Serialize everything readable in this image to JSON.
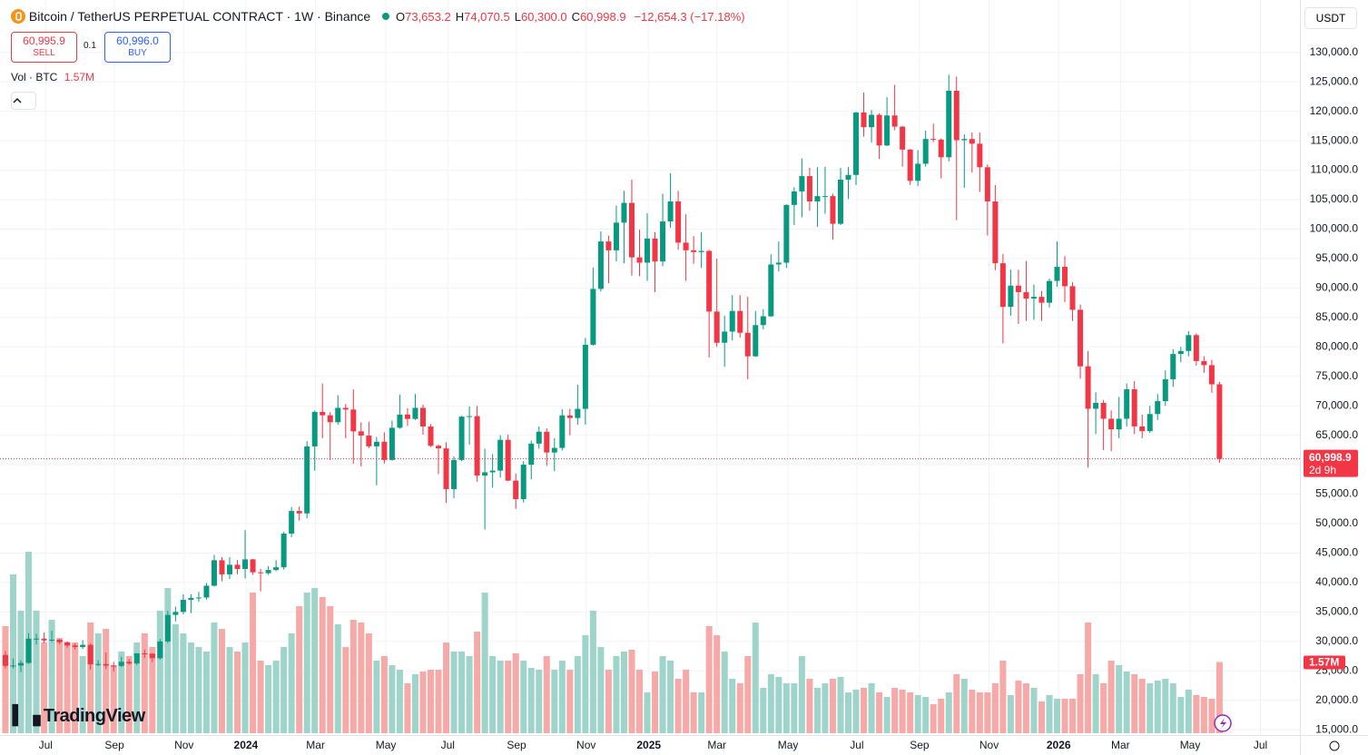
{
  "chart_data": {
    "type": "candlestick",
    "title": "Bitcoin / TetherUS PERPETUAL CONTRACT · 1W · Binance",
    "legend_letters": [
      "O",
      "H",
      "L",
      "C"
    ],
    "legend_values": [
      "73,653.2",
      "74,070.5",
      "60,300.0",
      "60,998.9"
    ],
    "change": "−12,654.3 (−17.18%)",
    "sell_price": "60,995.9",
    "sell": "SELL",
    "spread": "0.1",
    "buy_price": "60,996.0",
    "buy": "BUY",
    "volume_title": "Vol · BTC",
    "volume_last_label": "1.57M",
    "currency": "USDT",
    "last_price_label": "60,998.9",
    "countdown": "2d 9h",
    "brand": "TradingView",
    "up_color": "#089981",
    "down_color": "#f23645",
    "volume_up_color": "#9fd4cb",
    "volume_down_color": "#f7a9a7",
    "grid": true,
    "xlim": [
      -0.7,
      167.4
    ],
    "xticks": [
      {
        "value": 5.2,
        "label": "Jul"
      },
      {
        "value": 14.1,
        "label": "Sep"
      },
      {
        "value": 23.1,
        "label": "Nov"
      },
      {
        "value": 31.1,
        "label": "2024"
      },
      {
        "value": 40.1,
        "label": "Mar"
      },
      {
        "value": 49.2,
        "label": "May"
      },
      {
        "value": 57.2,
        "label": "Jul"
      },
      {
        "value": 66.1,
        "label": "Sep"
      },
      {
        "value": 75.1,
        "label": "Nov"
      },
      {
        "value": 83.2,
        "label": "2025"
      },
      {
        "value": 92.0,
        "label": "Mar"
      },
      {
        "value": 101.2,
        "label": "May"
      },
      {
        "value": 110.1,
        "label": "Jul"
      },
      {
        "value": 118.2,
        "label": "Sep"
      },
      {
        "value": 127.2,
        "label": "Nov"
      },
      {
        "value": 136.2,
        "label": "2026"
      },
      {
        "value": 144.2,
        "label": "Mar"
      },
      {
        "value": 153.2,
        "label": "May"
      },
      {
        "value": 162.3,
        "label": "Jul"
      }
    ],
    "ylim": [
      14100,
      138900
    ],
    "yticks": [
      {
        "value": 15000,
        "label": "15,000.0"
      },
      {
        "value": 20000,
        "label": "20,000.0"
      },
      {
        "value": 25000,
        "label": "25,000.0"
      },
      {
        "value": 30000,
        "label": "30,000.0"
      },
      {
        "value": 35000,
        "label": "35,000.0"
      },
      {
        "value": 40000,
        "label": "40,000.0"
      },
      {
        "value": 45000,
        "label": "45,000.0"
      },
      {
        "value": 50000,
        "label": "50,000.0"
      },
      {
        "value": 55000,
        "label": "55,000.0"
      },
      {
        "value": 60000,
        "label": "60,000.0"
      },
      {
        "value": 65000,
        "label": "65,000.0"
      },
      {
        "value": 70000,
        "label": "70,000.0"
      },
      {
        "value": 75000,
        "label": "75,000.0"
      },
      {
        "value": 80000,
        "label": "80,000.0"
      },
      {
        "value": 85000,
        "label": "85,000.0"
      },
      {
        "value": 90000,
        "label": "90,000.0"
      },
      {
        "value": 95000,
        "label": "95,000.0"
      },
      {
        "value": 100000,
        "label": "100,000.0"
      },
      {
        "value": 105000,
        "label": "105,000.0"
      },
      {
        "value": 110000,
        "label": "110,000.0"
      },
      {
        "value": 115000,
        "label": "115,000.0"
      },
      {
        "value": 120000,
        "label": "120,000.0"
      },
      {
        "value": 125000,
        "label": "125,000.0"
      },
      {
        "value": 130000,
        "label": "130,000.0"
      }
    ],
    "open": [
      27700,
      25850,
      25900,
      26340,
      30460,
      30470,
      30170,
      30290,
      29860,
      29310,
      29040,
      29410,
      26100,
      26160,
      25880,
      25840,
      26530,
      26250,
      27970,
      27920,
      27150,
      29990,
      34500,
      35000,
      37060,
      37380,
      37450,
      39450,
      43780,
      41380,
      43010,
      42300,
      43930,
      41730,
      41580,
      42120,
      42580,
      48300,
      52140,
      51730,
      63110,
      68960,
      68390,
      67210,
      69650,
      69360,
      65660,
      64940,
      63120,
      63890,
      60800,
      66270,
      68510,
      67770,
      69650,
      66490,
      63210,
      62770,
      55860,
      60800,
      68160,
      68250,
      58160,
      58710,
      58990,
      64220,
      57300,
      54150,
      60000,
      63580,
      65600,
      62070,
      62850,
      68370,
      67930,
      69480,
      80370,
      89850,
      97900,
      96400,
      101100,
      104460,
      95200,
      94300,
      98400,
      94500,
      101300,
      104700,
      97700,
      96400,
      96100,
      96300,
      86000,
      80700,
      82600,
      86100,
      82400,
      78400,
      83700,
      85200,
      94000,
      94300,
      104100,
      106400,
      109000,
      104700,
      105600,
      105600,
      100900,
      108400,
      109200,
      119800,
      117300,
      119400,
      114200,
      119300,
      117400,
      113500,
      108200,
      111100,
      115300,
      115200,
      112200,
      123500,
      115100,
      115300,
      114500,
      110500,
      104700,
      94200,
      86800,
      90400,
      89300,
      88200,
      88500,
      87500,
      91200,
      93600,
      90300,
      86300,
      76700,
      69500,
      70500,
      67800,
      66000,
      67800,
      72800,
      66500,
      65700,
      68600,
      70800,
      74500,
      78800,
      79300,
      82000,
      77600,
      76900,
      73653.2
    ],
    "high": [
      28400,
      27100,
      26800,
      31400,
      31300,
      31500,
      31800,
      30400,
      30000,
      29700,
      30200,
      29700,
      26800,
      28100,
      26500,
      27400,
      27000,
      28000,
      28600,
      28000,
      30400,
      35200,
      35900,
      38000,
      38000,
      38400,
      39900,
      44700,
      44300,
      44300,
      43800,
      48900,
      44000,
      42300,
      42800,
      43800,
      48600,
      52800,
      52900,
      64000,
      69200,
      73800,
      68900,
      71800,
      70300,
      72800,
      67200,
      67300,
      64700,
      65500,
      67500,
      71900,
      69600,
      72000,
      70200,
      66900,
      63400,
      63800,
      61400,
      68300,
      69900,
      70000,
      62700,
      61800,
      65000,
      65100,
      58500,
      60600,
      64100,
      66500,
      66200,
      64500,
      69400,
      69500,
      73600,
      81500,
      93500,
      99600,
      98900,
      104000,
      106500,
      108400,
      99900,
      102700,
      99500,
      106000,
      109500,
      106500,
      102500,
      98800,
      99500,
      96500,
      95000,
      85300,
      88800,
      88800,
      88500,
      86100,
      86400,
      95700,
      97900,
      104200,
      107100,
      112000,
      110400,
      110500,
      110600,
      106000,
      110400,
      110500,
      119900,
      123200,
      120200,
      119700,
      122400,
      124500,
      117500,
      113600,
      113400,
      116700,
      117900,
      115400,
      126200,
      125900,
      116100,
      116400,
      116400,
      111000,
      107500,
      95800,
      93100,
      93100,
      94600,
      90600,
      89500,
      91600,
      97900,
      95400,
      91000,
      87200,
      79300,
      72300,
      71000,
      69200,
      71500,
      73800,
      74200,
      68500,
      70000,
      72000,
      76000,
      79600,
      80000,
      82700,
      82300,
      78400,
      77800,
      74070.5
    ],
    "low": [
      25400,
      25400,
      24800,
      26200,
      29500,
      29700,
      29900,
      29500,
      28900,
      28600,
      28700,
      25200,
      25800,
      25300,
      24900,
      25600,
      26000,
      26000,
      27200,
      26500,
      26900,
      29700,
      33400,
      34600,
      34800,
      36700,
      37100,
      39300,
      40200,
      40600,
      41400,
      40700,
      41300,
      38500,
      41300,
      41900,
      42200,
      47700,
      50500,
      50900,
      59000,
      64500,
      60800,
      66800,
      64500,
      60200,
      59700,
      62800,
      56500,
      60200,
      60700,
      66100,
      66600,
      67600,
      65100,
      63000,
      58400,
      53500,
      54300,
      60600,
      63400,
      57100,
      49000,
      56100,
      57800,
      57200,
      52500,
      53600,
      57500,
      62700,
      59800,
      58900,
      62400,
      65000,
      66800,
      66800,
      80200,
      89400,
      90800,
      94500,
      94200,
      92100,
      92000,
      91200,
      89300,
      93700,
      100200,
      96500,
      91200,
      94100,
      93400,
      78200,
      80000,
      76600,
      81100,
      81600,
      74500,
      78300,
      83000,
      85100,
      92800,
      93400,
      100700,
      102000,
      103100,
      100400,
      102600,
      98200,
      100700,
      105100,
      107500,
      115700,
      114700,
      111900,
      114100,
      116800,
      110600,
      107500,
      107300,
      110600,
      114800,
      108600,
      111500,
      101500,
      107000,
      109600,
      106300,
      98900,
      93000,
      80600,
      85300,
      83900,
      84400,
      84600,
      84400,
      86700,
      90200,
      87600,
      84400,
      74600,
      59500,
      65200,
      62500,
      62300,
      64500,
      66500,
      65200,
      64500,
      65400,
      67600,
      70000,
      73200,
      77400,
      78400,
      76800,
      75600,
      72200,
      60300
    ],
    "close": [
      25850,
      25900,
      26340,
      30460,
      30470,
      30170,
      30290,
      29860,
      29310,
      29040,
      29410,
      26100,
      26160,
      25880,
      25840,
      26530,
      26250,
      27970,
      27920,
      27150,
      29990,
      34500,
      35000,
      37060,
      37380,
      37450,
      39450,
      43780,
      41380,
      43010,
      42300,
      43930,
      41730,
      41580,
      42120,
      42580,
      48300,
      52140,
      51730,
      63110,
      68960,
      68390,
      67210,
      69650,
      69360,
      65660,
      64940,
      63120,
      63890,
      60800,
      66270,
      68510,
      67770,
      69650,
      66490,
      63210,
      62770,
      55860,
      60800,
      68160,
      68250,
      58160,
      58710,
      58990,
      64220,
      57300,
      54150,
      60000,
      63580,
      65600,
      62070,
      62850,
      68370,
      67930,
      69480,
      80370,
      89850,
      97900,
      96400,
      101100,
      104460,
      95200,
      94300,
      98400,
      94500,
      101300,
      104700,
      97700,
      96400,
      96100,
      96300,
      86000,
      80700,
      82600,
      86100,
      82400,
      78400,
      83700,
      85200,
      94000,
      94300,
      104100,
      106400,
      109000,
      104700,
      105600,
      105600,
      100900,
      108400,
      109200,
      119800,
      117300,
      119400,
      114200,
      119300,
      117400,
      113500,
      108200,
      111100,
      115300,
      115200,
      112200,
      123500,
      115100,
      115300,
      114500,
      110500,
      104700,
      94200,
      86800,
      90400,
      89300,
      88200,
      88500,
      87500,
      91200,
      93600,
      90300,
      86300,
      76700,
      69500,
      70500,
      67800,
      66000,
      67800,
      72800,
      66500,
      65700,
      68600,
      70800,
      74500,
      78800,
      79300,
      82000,
      77600,
      76900,
      73653.2,
      60998.9
    ],
    "volume": [
      2360000,
      3500000,
      2700000,
      4000000,
      2700000,
      2000000,
      2500000,
      2100000,
      2000000,
      2000000,
      1700000,
      2440000,
      2200000,
      2300000,
      1500000,
      1800000,
      1700000,
      2000000,
      2200000,
      1900000,
      2700000,
      3200000,
      2400000,
      2200000,
      2000000,
      1900000,
      1800000,
      2440000,
      2300000,
      1900000,
      1800000,
      2000000,
      3100000,
      1600000,
      1500000,
      1600000,
      1900000,
      2200000,
      2800000,
      3100000,
      3200000,
      3000000,
      2800000,
      2400000,
      1900000,
      2500000,
      2440000,
      2200000,
      1600000,
      1700000,
      1500000,
      1400000,
      1100000,
      1300000,
      1360000,
      1400000,
      1400000,
      2000000,
      1800000,
      1800000,
      1700000,
      2240000,
      3100000,
      1700000,
      1600000,
      1600000,
      1760000,
      1600000,
      1440000,
      1400000,
      1700000,
      1400000,
      1600000,
      1400000,
      1700000,
      2160000,
      2700000,
      1900000,
      1400000,
      1700000,
      1800000,
      1840000,
      1400000,
      900000,
      1360000,
      1700000,
      1600000,
      1200000,
      1400000,
      900000,
      900000,
      2360000,
      2160000,
      1800000,
      1200000,
      1100000,
      1700000,
      2440000,
      1000000,
      1300000,
      1240000,
      1100000,
      1100000,
      1700000,
      1200000,
      1000000,
      1100000,
      1200000,
      1240000,
      900000,
      960000,
      1000000,
      1100000,
      900000,
      800000,
      1000000,
      960000,
      900000,
      840000,
      800000,
      640000,
      760000,
      900000,
      1300000,
      1200000,
      960000,
      900000,
      900000,
      1100000,
      1600000,
      840000,
      1160000,
      1100000,
      1000000,
      700000,
      840000,
      760000,
      760000,
      760000,
      1300000,
      2440000,
      1300000,
      1100000,
      1600000,
      1500000,
      1360000,
      1300000,
      1200000,
      1100000,
      1160000,
      1200000,
      1100000,
      800000,
      960000,
      840000,
      800000,
      760000,
      1570000
    ]
  }
}
